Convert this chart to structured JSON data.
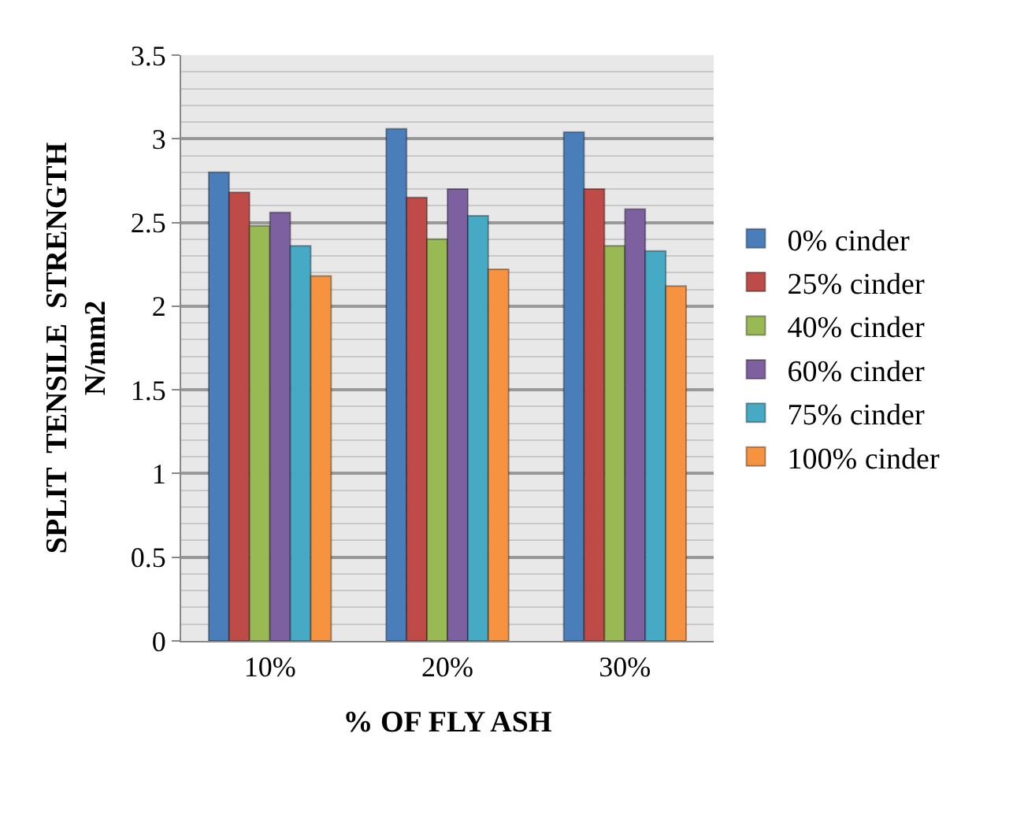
{
  "chart_data": {
    "type": "bar",
    "xlabel": "% OF FLY ASH",
    "ylabel": "SPLIT  TENSILE  STRENGTH N/mm2",
    "categories": [
      "10%",
      "20%",
      "30%"
    ],
    "series": [
      {
        "name": "0% cinder",
        "color": "#4a7ebb",
        "values": [
          2.8,
          3.06,
          3.04
        ]
      },
      {
        "name": "25% cinder",
        "color": "#be4b48",
        "values": [
          2.68,
          2.65,
          2.7
        ]
      },
      {
        "name": "40% cinder",
        "color": "#98b954",
        "values": [
          2.48,
          2.4,
          2.36
        ]
      },
      {
        "name": "60% cinder",
        "color": "#7d60a0",
        "values": [
          2.56,
          2.7,
          2.58
        ]
      },
      {
        "name": "75% cinder",
        "color": "#46aac5",
        "values": [
          2.36,
          2.54,
          2.33
        ]
      },
      {
        "name": "100% cinder",
        "color": "#f69240",
        "values": [
          2.18,
          2.22,
          2.12
        ]
      }
    ],
    "ylim": [
      0,
      3.5
    ],
    "yticks": [
      0,
      0.5,
      1,
      1.5,
      2,
      2.5,
      3,
      3.5
    ],
    "grid": "y",
    "legend": "right"
  }
}
